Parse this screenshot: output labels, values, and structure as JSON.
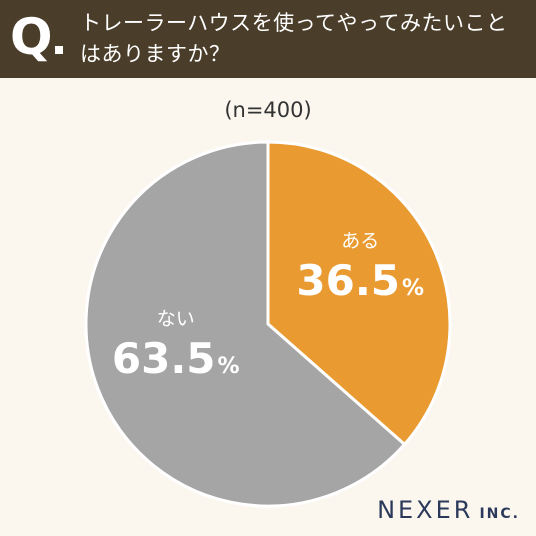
{
  "header": {
    "q_mark": "Q",
    "question": "トレーラーハウスを使ってやってみたいことはありますか？"
  },
  "sample_note": "(n=400)",
  "brand": {
    "logo_main": "NEXER",
    "logo_sub": "INC."
  },
  "chart_data": {
    "type": "pie",
    "title": "トレーラーハウスを使ってやってみたいことはありますか？",
    "note": "(n=400)",
    "slices": [
      {
        "label": "ある",
        "value": 36.5,
        "display": "36.5",
        "color": "#e99b32"
      },
      {
        "label": "ない",
        "value": 63.5,
        "display": "63.5",
        "color": "#a5a5a5"
      }
    ],
    "unit": "%",
    "start_angle": "12 o'clock",
    "direction": "clockwise"
  },
  "colors": {
    "header_bg": "#4a3d2a",
    "page_bg": "#fbf7ef",
    "slice_label": "#ffffff"
  }
}
